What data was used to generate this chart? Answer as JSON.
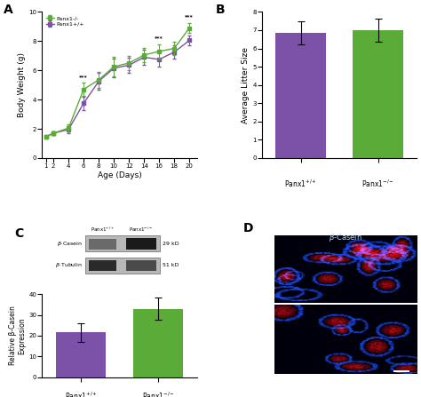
{
  "panel_A": {
    "xlabel": "Age (Days)",
    "ylabel": "Body Weight (g)",
    "x": [
      1,
      2,
      4,
      6,
      8,
      10,
      12,
      14,
      16,
      18,
      20
    ],
    "ko_mean": [
      1.45,
      1.7,
      2.05,
      4.7,
      5.35,
      6.25,
      6.5,
      7.05,
      7.3,
      7.5,
      8.9
    ],
    "wt_mean": [
      1.45,
      1.7,
      1.95,
      3.75,
      5.25,
      6.15,
      6.35,
      6.9,
      6.75,
      7.25,
      8.05
    ],
    "ko_err": [
      0.08,
      0.12,
      0.25,
      0.45,
      0.55,
      0.65,
      0.5,
      0.5,
      0.5,
      0.45,
      0.35
    ],
    "wt_err": [
      0.08,
      0.12,
      0.25,
      0.45,
      0.55,
      0.65,
      0.5,
      0.5,
      0.5,
      0.45,
      0.35
    ],
    "ko_color": "#5aab37",
    "wt_color": "#7b52a7",
    "ylim": [
      0,
      10
    ],
    "yticks": [
      0,
      2,
      4,
      6,
      8,
      10
    ],
    "legend_ko": "Panx1-/-",
    "legend_wt": "Panx1+/+"
  },
  "panel_B": {
    "ylabel": "Average Litter Size",
    "values": [
      6.85,
      7.0
    ],
    "errors": [
      0.65,
      0.65
    ],
    "colors": [
      "#7b52a7",
      "#5aab37"
    ],
    "ylim": [
      0,
      8
    ],
    "yticks": [
      0,
      1,
      2,
      3,
      4,
      5,
      6,
      7,
      8
    ]
  },
  "panel_C_bar": {
    "ylabel": "Relative β-Casein\nExpression",
    "values": [
      21.5,
      33.0
    ],
    "errors": [
      4.5,
      5.5
    ],
    "colors": [
      "#7b52a7",
      "#5aab37"
    ],
    "ylim": [
      0,
      40
    ],
    "yticks": [
      0,
      10,
      20,
      30,
      40
    ]
  },
  "bg_color": "#ffffff"
}
